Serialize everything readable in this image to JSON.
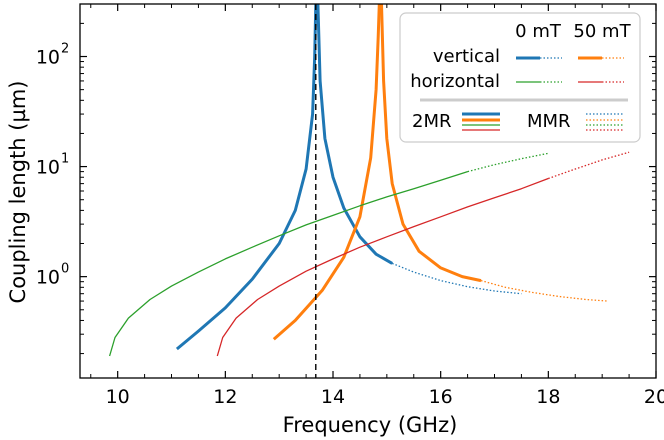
{
  "chart_data": {
    "type": "line",
    "title": "",
    "xlabel": "Frequency (GHz)",
    "ylabel": "Coupling length (µm)",
    "xlim": [
      9.3,
      20.0
    ],
    "ylim": [
      0.12,
      300
    ],
    "yscale": "log",
    "grid": false,
    "x_ticks": [
      10,
      12,
      14,
      16,
      18,
      20
    ],
    "x_tick_labels": [
      "10",
      "12",
      "14",
      "16",
      "18",
      "20"
    ],
    "y_ticks": [
      1,
      10,
      100
    ],
    "y_tick_labels": [
      "10",
      "10",
      "10"
    ],
    "y_tick_exponents": [
      "0",
      "1",
      "2"
    ],
    "colors": {
      "vertical_0mT": "#1f77b4",
      "vertical_50mT": "#ff7f0e",
      "horizontal_0mT": "#2ca02c",
      "horizontal_50mT": "#d62728",
      "reference_line": "#000000"
    },
    "vline": {
      "x": 13.68,
      "style": "dashed",
      "color": "#000000"
    },
    "legend": {
      "placement": "top-right",
      "col_0mT": "0 mT",
      "col_50mT": "50 mT",
      "row_vertical": "vertical",
      "row_horizontal": "horizontal",
      "label_2MR": "2MR",
      "label_MMR": "MMR"
    },
    "series": [
      {
        "name": "vertical 0 mT 2MR",
        "model": "2MR",
        "field": "0 mT",
        "mode": "vertical",
        "color": "#1f77b4",
        "style": "solid",
        "width": "thick",
        "x": [
          11.1,
          11.5,
          12.0,
          12.5,
          13.0,
          13.3,
          13.5,
          13.62,
          13.66,
          13.68
        ],
        "y": [
          0.22,
          0.32,
          0.52,
          0.95,
          2.0,
          4.0,
          9.5,
          30,
          100,
          300
        ]
      },
      {
        "name": "vertical 0 mT 2MR (upper branch)",
        "model": "2MR",
        "field": "0 mT",
        "mode": "vertical",
        "color": "#1f77b4",
        "style": "solid",
        "width": "thick",
        "x": [
          13.72,
          13.76,
          13.85,
          14.0,
          14.2,
          14.5,
          14.8,
          15.1
        ],
        "y": [
          300,
          60,
          18,
          8.0,
          4.2,
          2.3,
          1.6,
          1.32
        ]
      },
      {
        "name": "vertical 0 mT MMR",
        "model": "MMR",
        "field": "0 mT",
        "mode": "vertical",
        "color": "#1f77b4",
        "style": "dotted",
        "width": "thin",
        "x": [
          15.1,
          15.5,
          16.0,
          16.5,
          17.0,
          17.5
        ],
        "y": [
          1.32,
          1.1,
          0.92,
          0.81,
          0.74,
          0.7
        ]
      },
      {
        "name": "vertical 50 mT 2MR",
        "model": "2MR",
        "field": "50 mT",
        "mode": "vertical",
        "color": "#ff7f0e",
        "style": "solid",
        "width": "thick",
        "x": [
          12.9,
          13.3,
          13.8,
          14.2,
          14.5,
          14.7,
          14.8,
          14.84,
          14.86
        ],
        "y": [
          0.27,
          0.4,
          0.75,
          1.5,
          3.5,
          12,
          50,
          150,
          300
        ]
      },
      {
        "name": "vertical 50 mT 2MR (upper branch)",
        "model": "2MR",
        "field": "50 mT",
        "mode": "vertical",
        "color": "#ff7f0e",
        "style": "solid",
        "width": "thick",
        "x": [
          14.9,
          14.94,
          15.0,
          15.1,
          15.3,
          15.6,
          16.0,
          16.4,
          16.75
        ],
        "y": [
          300,
          60,
          18,
          7.0,
          3.0,
          1.7,
          1.2,
          1.0,
          0.92
        ]
      },
      {
        "name": "vertical 50 mT MMR",
        "model": "MMR",
        "field": "50 mT",
        "mode": "vertical",
        "color": "#ff7f0e",
        "style": "dotted",
        "width": "thin",
        "x": [
          16.75,
          17.2,
          17.7,
          18.2,
          18.7,
          19.1
        ],
        "y": [
          0.92,
          0.8,
          0.72,
          0.66,
          0.62,
          0.6
        ]
      },
      {
        "name": "horizontal 0 mT 2MR",
        "model": "2MR",
        "field": "0 mT",
        "mode": "horizontal",
        "color": "#2ca02c",
        "style": "solid",
        "width": "thin",
        "x": [
          9.85,
          9.95,
          10.2,
          10.6,
          11.0,
          11.5,
          12.0,
          12.5,
          13.0,
          13.5,
          14.0,
          14.5,
          15.0,
          15.5,
          16.0,
          16.5
        ],
        "y": [
          0.19,
          0.28,
          0.42,
          0.62,
          0.82,
          1.1,
          1.45,
          1.85,
          2.35,
          2.95,
          3.6,
          4.4,
          5.3,
          6.3,
          7.5,
          9.0
        ]
      },
      {
        "name": "horizontal 0 mT MMR",
        "model": "MMR",
        "field": "0 mT",
        "mode": "horizontal",
        "color": "#2ca02c",
        "style": "dotted",
        "width": "thin",
        "x": [
          16.5,
          17.0,
          17.5,
          18.0
        ],
        "y": [
          9.0,
          10.4,
          11.8,
          13.2
        ]
      },
      {
        "name": "horizontal 50 mT 2MR",
        "model": "2MR",
        "field": "50 mT",
        "mode": "horizontal",
        "color": "#d62728",
        "style": "solid",
        "width": "thin",
        "x": [
          11.85,
          11.95,
          12.2,
          12.6,
          13.0,
          13.5,
          14.0,
          14.5,
          15.0,
          15.5,
          16.0,
          16.5,
          17.0,
          17.5,
          18.0
        ],
        "y": [
          0.19,
          0.28,
          0.42,
          0.62,
          0.82,
          1.12,
          1.45,
          1.85,
          2.3,
          2.85,
          3.5,
          4.3,
          5.2,
          6.3,
          7.8
        ]
      },
      {
        "name": "horizontal 50 mT MMR",
        "model": "MMR",
        "field": "50 mT",
        "mode": "horizontal",
        "color": "#d62728",
        "style": "dotted",
        "width": "thin",
        "x": [
          18.0,
          18.5,
          19.0,
          19.5
        ],
        "y": [
          7.8,
          9.5,
          11.5,
          13.5
        ]
      }
    ]
  }
}
